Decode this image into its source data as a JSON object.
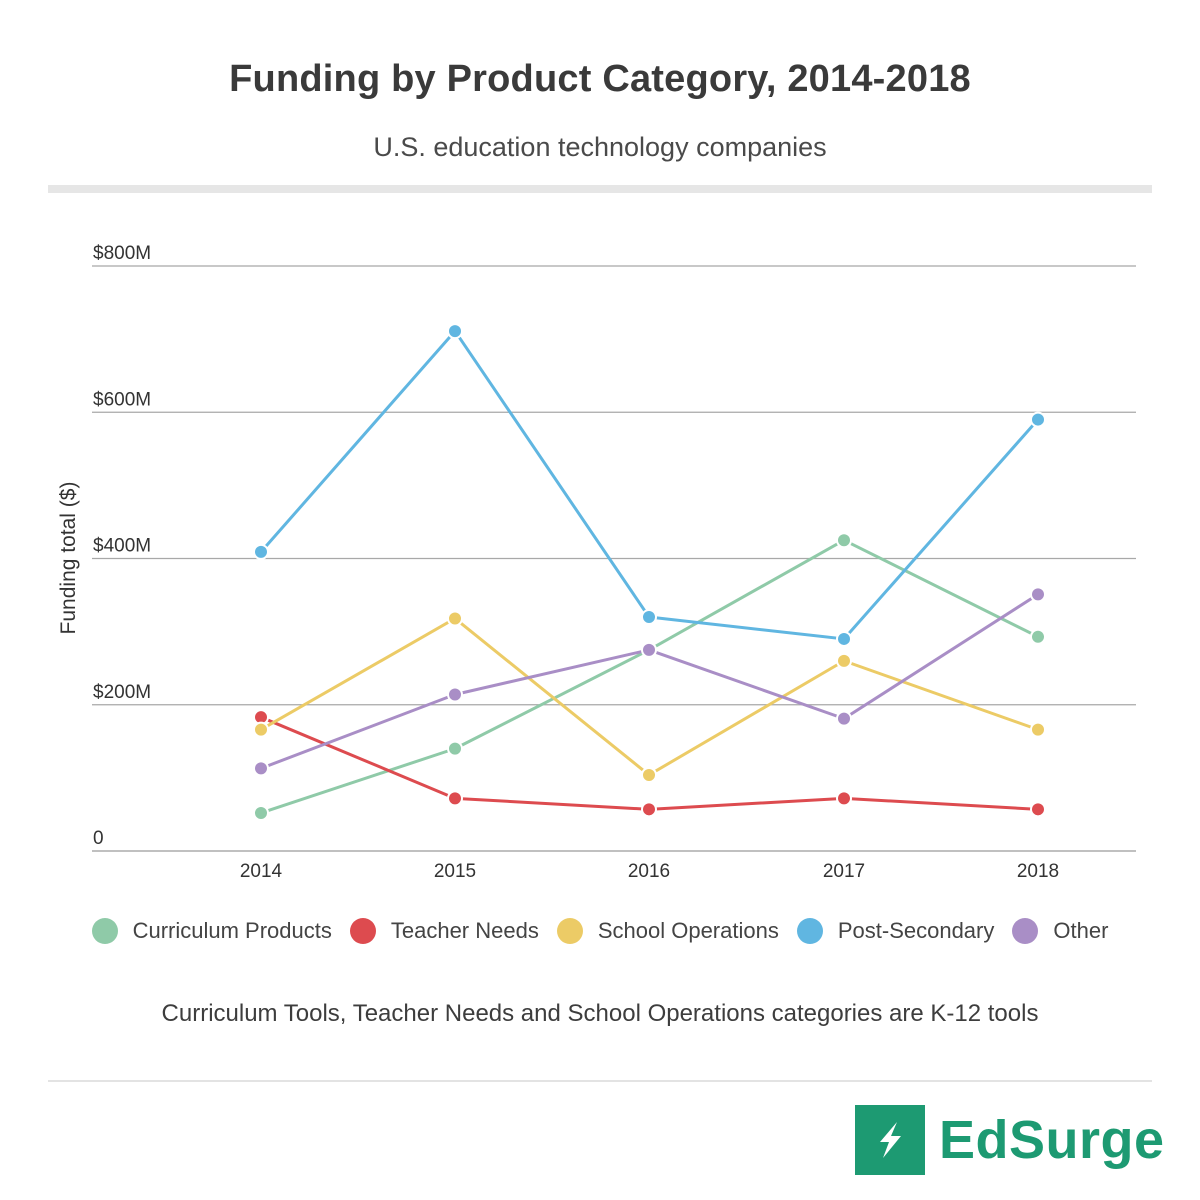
{
  "chart_data": {
    "type": "line",
    "title": "Funding by Product Category, 2014-2018",
    "subtitle": "U.S. education technology companies",
    "ylabel": "Funding total ($)",
    "xlabel": "",
    "categories": [
      "2014",
      "2015",
      "2016",
      "2017",
      "2018"
    ],
    "ylim": [
      0,
      800
    ],
    "y_ticks": [
      {
        "value": 0,
        "label": "0"
      },
      {
        "value": 200,
        "label": "$200M"
      },
      {
        "value": 400,
        "label": "$400M"
      },
      {
        "value": 600,
        "label": "$600M"
      },
      {
        "value": 800,
        "label": "$800M"
      }
    ],
    "grid": true,
    "legend_position": "bottom",
    "series": [
      {
        "name": "Curriculum Products",
        "color": "#8fcaa8",
        "values": [
          52,
          140,
          275,
          425,
          293
        ]
      },
      {
        "name": "Teacher Needs",
        "color": "#dd4b4f",
        "values": [
          183,
          72,
          57,
          72,
          57
        ]
      },
      {
        "name": "School Operations",
        "color": "#eccb66",
        "values": [
          166,
          318,
          104,
          260,
          166
        ]
      },
      {
        "name": "Post-Secondary",
        "color": "#60b6e1",
        "values": [
          409,
          711,
          320,
          290,
          590
        ]
      },
      {
        "name": "Other",
        "color": "#a98ec6",
        "values": [
          113,
          214,
          275,
          181,
          351
        ]
      }
    ],
    "note": "Curriculum Tools, Teacher Needs and School Operations categories are K-12 tools"
  },
  "brand": {
    "name": "EdSurge",
    "color": "#1d9a72",
    "icon": "lightning-bolt-icon"
  }
}
